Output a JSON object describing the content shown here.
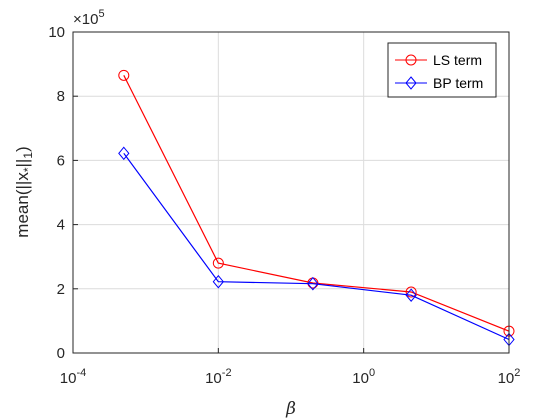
{
  "chart_data": {
    "type": "line",
    "xscale": "log",
    "xlim": [
      0.0001,
      100
    ],
    "ylim": [
      0,
      10
    ],
    "y_multiplier": "×10^5",
    "xlabel": "β",
    "ylabel": "mean(||x*||1)",
    "grid": true,
    "legend_position": "top-right",
    "x": [
      0.0005,
      0.01,
      0.2,
      4.5,
      100
    ],
    "series": [
      {
        "name": "LS term",
        "color": "#ff0000",
        "marker": "circle",
        "values": [
          8.65,
          2.8,
          2.18,
          1.9,
          0.68
        ]
      },
      {
        "name": "BP term",
        "color": "#0000ff",
        "marker": "diamond",
        "values": [
          6.22,
          2.22,
          2.16,
          1.8,
          0.42
        ]
      }
    ],
    "x_ticks": [
      {
        "base": "10",
        "exp": "-4",
        "value": 0.0001
      },
      {
        "base": "10",
        "exp": "-2",
        "value": 0.01
      },
      {
        "base": "10",
        "exp": "0",
        "value": 1
      },
      {
        "base": "10",
        "exp": "2",
        "value": 100
      }
    ],
    "y_ticks": [
      "0",
      "2",
      "4",
      "6",
      "8",
      "10"
    ],
    "multiplier_prefix": "×10",
    "multiplier_exp": "5",
    "ylabel_main": "mean(||x",
    "ylabel_sub1": "*",
    "ylabel_mid": "||",
    "ylabel_sub2": "1",
    "ylabel_end": ")"
  }
}
